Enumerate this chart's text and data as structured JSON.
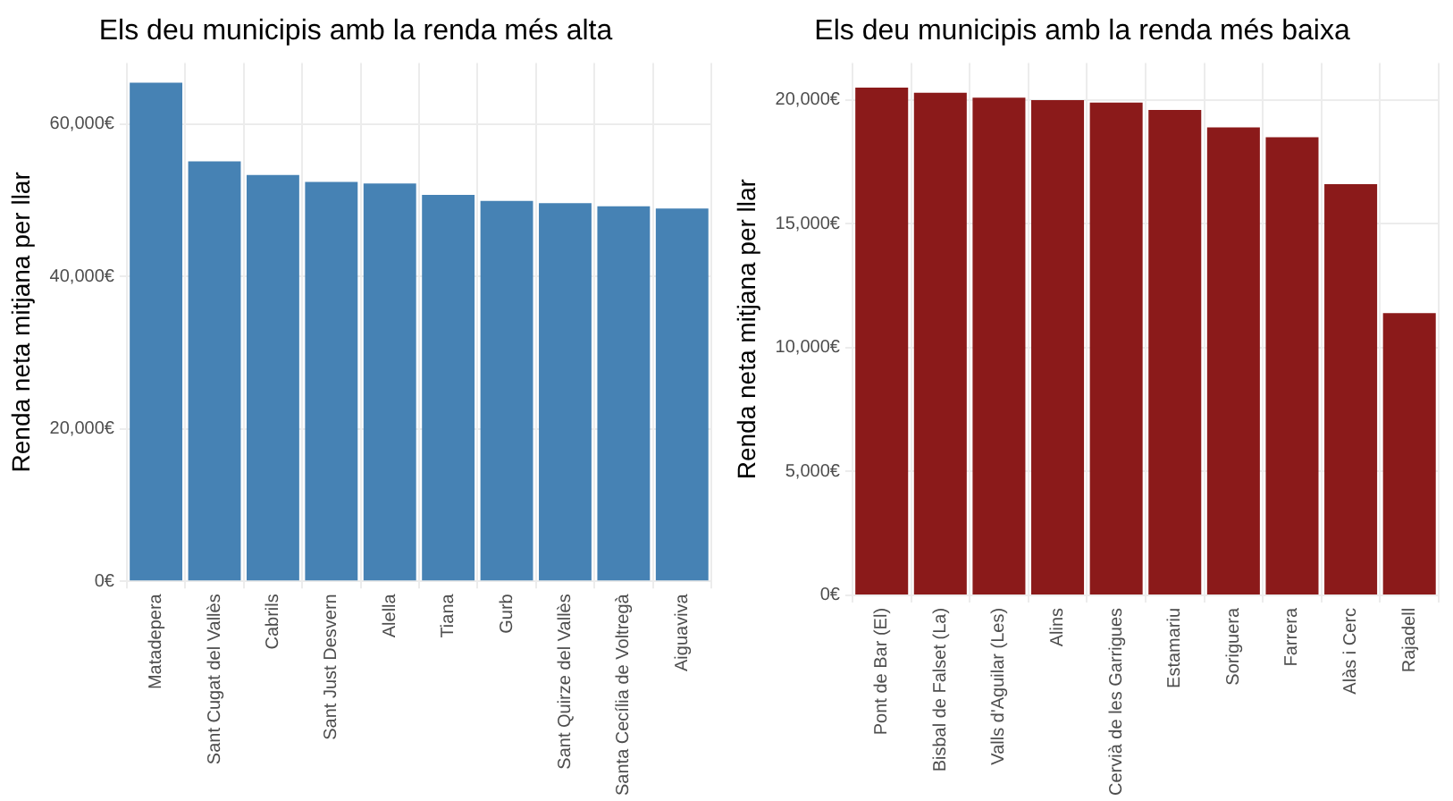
{
  "chart_data": [
    {
      "type": "bar",
      "title": "Els deu municipis amb la renda més alta",
      "ylabel": "Renda neta mitjana per llar",
      "categories": [
        "Matadepera",
        "Sant Cugat del Vallès",
        "Cabrils",
        "Sant Just Desvern",
        "Alella",
        "Tiana",
        "Gurb",
        "Sant Quirze del Vallès",
        "Santa Cecília de Voltregà",
        "Aiguaviva"
      ],
      "values": [
        65400,
        55100,
        53300,
        52400,
        52200,
        50700,
        49900,
        49600,
        49200,
        48900
      ],
      "color": "#4682b4",
      "ylim": [
        0,
        68000
      ],
      "yticks": [
        {
          "value": 0,
          "label": "0€"
        },
        {
          "value": 20000,
          "label": "20,000€"
        },
        {
          "value": 40000,
          "label": "40,000€"
        },
        {
          "value": 60000,
          "label": "60,000€"
        }
      ],
      "grid": true
    },
    {
      "type": "bar",
      "title": "Els deu municipis amb la renda més baixa",
      "ylabel": "Renda neta mitjana per llar",
      "categories": [
        "Pont de Bar (El)",
        "Bisbal de Falset (La)",
        "Valls d'Aguilar (Les)",
        "Alins",
        "Cervià de les Garrigues",
        "Estamariu",
        "Soriguera",
        "Farrera",
        "Alàs i Cerc",
        "Rajadell"
      ],
      "values": [
        20500,
        20300,
        20100,
        20000,
        19900,
        19600,
        18900,
        18500,
        16600,
        11400
      ],
      "color": "#8b1a1a",
      "ylim": [
        0,
        21500
      ],
      "yticks": [
        {
          "value": 0,
          "label": "0€"
        },
        {
          "value": 5000,
          "label": "5,000€"
        },
        {
          "value": 10000,
          "label": "10,000€"
        },
        {
          "value": 15000,
          "label": "15,000€"
        },
        {
          "value": 20000,
          "label": "20,000€"
        }
      ],
      "grid": true
    }
  ]
}
